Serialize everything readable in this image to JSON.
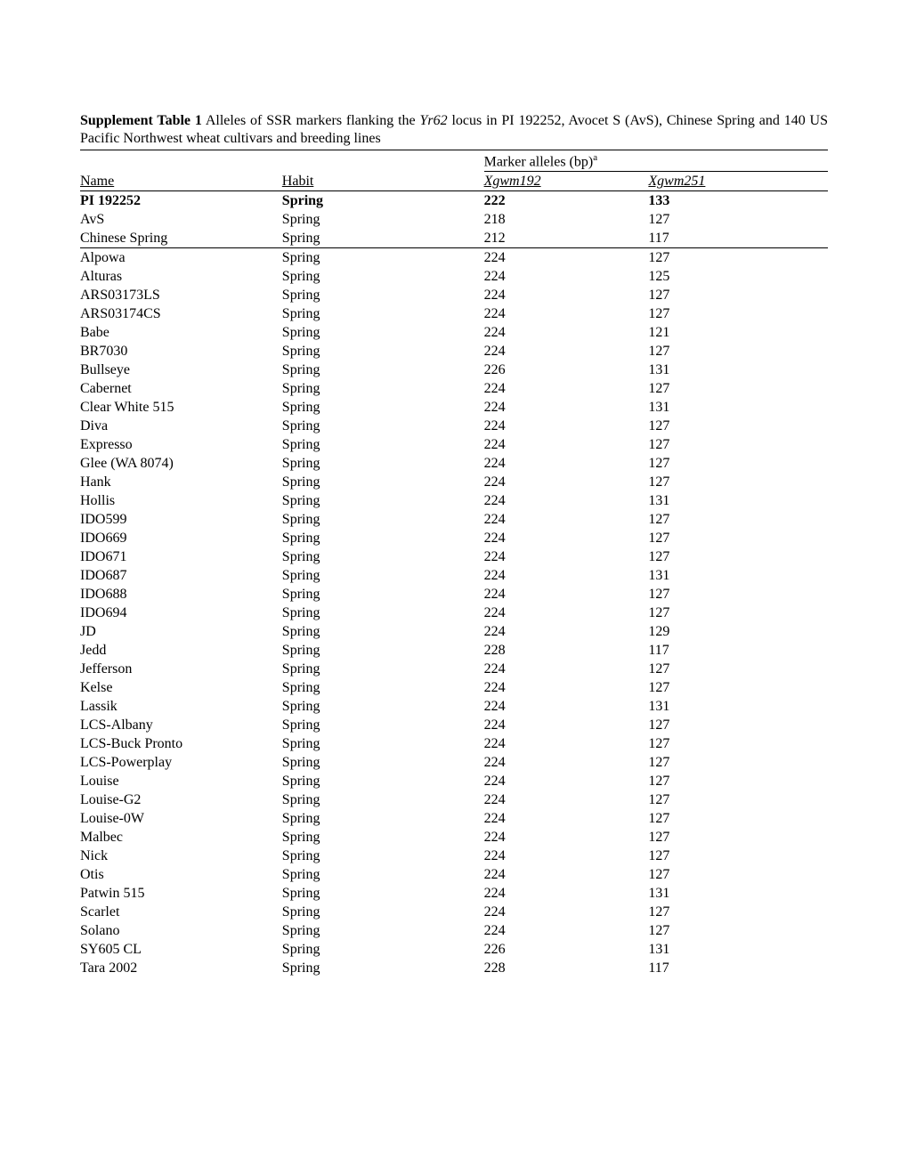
{
  "caption": {
    "label": "Supplement Table 1",
    "text_before_gene": " Alleles of SSR markers flanking the ",
    "gene": "Yr62",
    "text_after_gene": " locus in PI 192252, Avocet S (AvS), Chinese Spring and 140 US Pacific Northwest wheat cultivars and breeding lines"
  },
  "headers": {
    "name": "Name",
    "habit": "Habit",
    "marker_super": "Marker alleles (bp)",
    "marker_super_note": "a",
    "m1": "Xgwm192",
    "m2": "Xgwm251"
  },
  "reference_rows": [
    {
      "name": "PI 192252",
      "habit": "Spring",
      "m1": "222",
      "m2": "133",
      "bold": true
    },
    {
      "name": "AvS",
      "habit": "Spring",
      "m1": "218",
      "m2": "127",
      "bold": false
    },
    {
      "name": "Chinese Spring",
      "habit": "Spring",
      "m1": "212",
      "m2": "117",
      "bold": false
    }
  ],
  "rows": [
    {
      "name": "Alpowa",
      "habit": "Spring",
      "m1": "224",
      "m2": "127"
    },
    {
      "name": "Alturas",
      "habit": "Spring",
      "m1": "224",
      "m2": "125"
    },
    {
      "name": "ARS03173LS",
      "habit": "Spring",
      "m1": "224",
      "m2": "127"
    },
    {
      "name": "ARS03174CS",
      "habit": "Spring",
      "m1": "224",
      "m2": "127"
    },
    {
      "name": "Babe",
      "habit": "Spring",
      "m1": "224",
      "m2": "121"
    },
    {
      "name": "BR7030",
      "habit": "Spring",
      "m1": "224",
      "m2": "127"
    },
    {
      "name": "Bullseye",
      "habit": "Spring",
      "m1": "226",
      "m2": "131"
    },
    {
      "name": "Cabernet",
      "habit": "Spring",
      "m1": "224",
      "m2": "127"
    },
    {
      "name": "Clear White 515",
      "habit": "Spring",
      "m1": "224",
      "m2": "131"
    },
    {
      "name": "Diva",
      "habit": "Spring",
      "m1": "224",
      "m2": "127"
    },
    {
      "name": "Expresso",
      "habit": "Spring",
      "m1": "224",
      "m2": "127"
    },
    {
      "name": "Glee (WA 8074)",
      "habit": "Spring",
      "m1": "224",
      "m2": "127"
    },
    {
      "name": "Hank",
      "habit": "Spring",
      "m1": "224",
      "m2": "127"
    },
    {
      "name": "Hollis",
      "habit": "Spring",
      "m1": "224",
      "m2": "131"
    },
    {
      "name": "IDO599",
      "habit": "Spring",
      "m1": "224",
      "m2": "127"
    },
    {
      "name": "IDO669",
      "habit": "Spring",
      "m1": "224",
      "m2": "127"
    },
    {
      "name": "IDO671",
      "habit": "Spring",
      "m1": "224",
      "m2": "127"
    },
    {
      "name": "IDO687",
      "habit": "Spring",
      "m1": "224",
      "m2": "131"
    },
    {
      "name": "IDO688",
      "habit": "Spring",
      "m1": "224",
      "m2": "127"
    },
    {
      "name": "IDO694",
      "habit": "Spring",
      "m1": "224",
      "m2": "127"
    },
    {
      "name": "JD",
      "habit": "Spring",
      "m1": "224",
      "m2": "129"
    },
    {
      "name": "Jedd",
      "habit": "Spring",
      "m1": "228",
      "m2": "117"
    },
    {
      "name": "Jefferson",
      "habit": "Spring",
      "m1": "224",
      "m2": "127"
    },
    {
      "name": "Kelse",
      "habit": "Spring",
      "m1": "224",
      "m2": "127"
    },
    {
      "name": "Lassik",
      "habit": "Spring",
      "m1": "224",
      "m2": "131"
    },
    {
      "name": "LCS-Albany",
      "habit": "Spring",
      "m1": "224",
      "m2": "127"
    },
    {
      "name": "LCS-Buck Pronto",
      "habit": "Spring",
      "m1": "224",
      "m2": "127"
    },
    {
      "name": "LCS-Powerplay",
      "habit": "Spring",
      "m1": "224",
      "m2": "127"
    },
    {
      "name": "Louise",
      "habit": "Spring",
      "m1": "224",
      "m2": "127"
    },
    {
      "name": "Louise-G2",
      "habit": "Spring",
      "m1": "224",
      "m2": "127"
    },
    {
      "name": "Louise-0W",
      "habit": "Spring",
      "m1": "224",
      "m2": "127"
    },
    {
      "name": "Malbec",
      "habit": "Spring",
      "m1": "224",
      "m2": "127"
    },
    {
      "name": "Nick",
      "habit": "Spring",
      "m1": "224",
      "m2": "127"
    },
    {
      "name": "Otis",
      "habit": "Spring",
      "m1": "224",
      "m2": "127"
    },
    {
      "name": "Patwin 515",
      "habit": "Spring",
      "m1": "224",
      "m2": "131"
    },
    {
      "name": "Scarlet",
      "habit": "Spring",
      "m1": "224",
      "m2": "127"
    },
    {
      "name": "Solano",
      "habit": "Spring",
      "m1": "224",
      "m2": "127"
    },
    {
      "name": "SY605 CL",
      "habit": "Spring",
      "m1": "226",
      "m2": "131"
    },
    {
      "name": "Tara 2002",
      "habit": "Spring",
      "m1": "228",
      "m2": "117"
    }
  ],
  "style": {
    "font_family": "Times New Roman",
    "font_size_pt": 12,
    "text_color": "#000000",
    "background_color": "#ffffff",
    "rule_color": "#000000",
    "col_widths_pct": [
      27,
      27,
      22,
      24
    ]
  }
}
